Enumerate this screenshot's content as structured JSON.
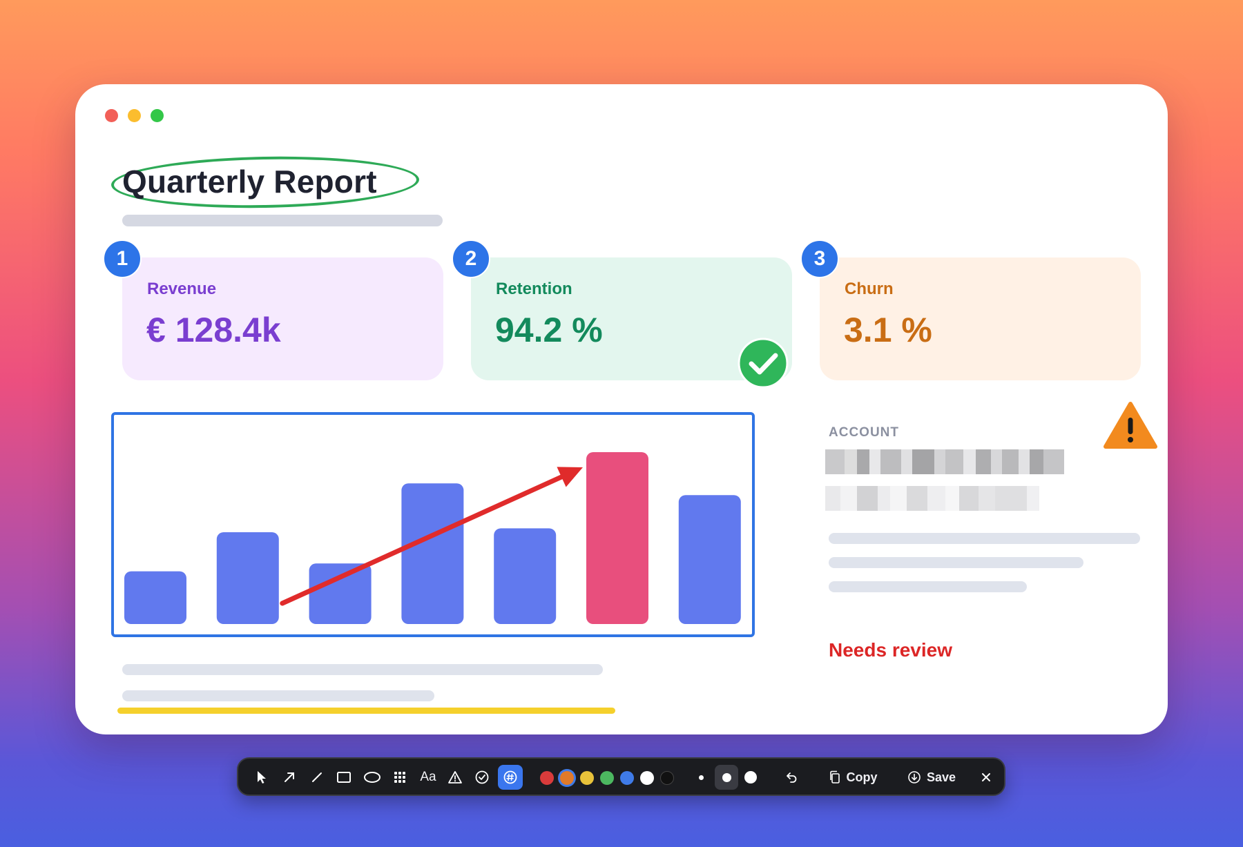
{
  "window": {
    "traffic_lights": [
      "close",
      "minimize",
      "zoom"
    ],
    "title": "Quarterly Report"
  },
  "kpis": [
    {
      "badge": "1",
      "label": "Revenue",
      "value": "€ 128.4k",
      "color": "#7a3ed0"
    },
    {
      "badge": "2",
      "label": "Retention",
      "value": "94.2 %",
      "color": "#138a5c",
      "annotation": "check-icon"
    },
    {
      "badge": "3",
      "label": "Churn",
      "value": "3.1 %",
      "color": "#c96d14"
    }
  ],
  "chart_data": {
    "type": "bar",
    "categories": [
      "",
      "",
      "",
      "",
      "",
      "",
      ""
    ],
    "values": [
      27,
      47,
      31,
      72,
      49,
      88,
      66
    ],
    "highlight_index": 5,
    "bar_color": "#6179ee",
    "highlight_color": "#e84f7d",
    "ylim": [
      0,
      100
    ],
    "title": "",
    "xlabel": "",
    "ylabel": "",
    "grid": false
  },
  "annotations": {
    "arrow_color": "#e02b2b",
    "frame_color": "#2f74e4",
    "ellipse_color": "#2eaa57",
    "highlighter_color": "#f5d02c"
  },
  "side_panel": {
    "section_label": "ACCOUNT",
    "status_text": "Needs review",
    "status_color": "#dc2626",
    "status_icon": "warning-icon"
  },
  "toolbar": {
    "tools": [
      "select-icon",
      "arrow-icon",
      "line-icon",
      "rectangle-icon",
      "ellipse-icon",
      "pixelate-icon",
      "text-icon",
      "warning-stamp-icon",
      "check-stamp-icon",
      "number-stamp-icon"
    ],
    "text_tool_label": "Aa",
    "active_tool": "number-stamp-icon",
    "colors": [
      "#d93b3b",
      "#e07a2a",
      "#e8c23a",
      "#4cb860",
      "#3f7be8",
      "#ffffff",
      "#111111"
    ],
    "selected_color": "#e07a2a",
    "stroke_sizes": [
      "small",
      "medium",
      "large"
    ],
    "selected_stroke": "medium",
    "copy_label": "Copy",
    "save_label": "Save"
  }
}
